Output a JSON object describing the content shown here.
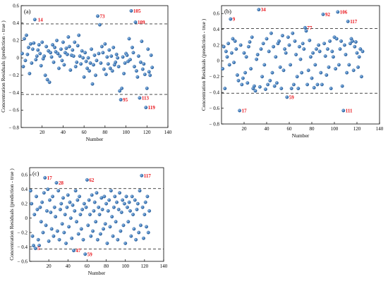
{
  "chart_data": [
    {
      "panel": "(a)",
      "type": "scatter",
      "xlabel": "Number",
      "ylabel": "Concentration Residuals (prediction - true )",
      "xlim": [
        0,
        140
      ],
      "ylim": [
        -0.8,
        0.6
      ],
      "xticks": [
        20,
        40,
        60,
        80,
        100,
        120,
        140
      ],
      "yticks": [
        -0.8,
        -0.6,
        -0.4,
        -0.2,
        0,
        0.2,
        0.4,
        0.6
      ],
      "ytick_labels": [
        "− 0.8",
        "− 0.6",
        "− 0.4",
        "− 0.2",
        "0",
        "0.2",
        "0.4",
        "0.6"
      ],
      "threshold_lines": [
        0.39,
        -0.42
      ],
      "x": [
        1,
        2,
        3,
        4,
        5,
        6,
        7,
        8,
        9,
        10,
        11,
        12,
        13,
        14,
        15,
        16,
        17,
        18,
        19,
        20,
        21,
        22,
        23,
        24,
        25,
        26,
        27,
        28,
        29,
        30,
        31,
        32,
        33,
        34,
        35,
        36,
        37,
        38,
        39,
        40,
        41,
        42,
        43,
        44,
        45,
        46,
        47,
        48,
        49,
        50,
        51,
        52,
        53,
        54,
        55,
        56,
        57,
        58,
        59,
        60,
        61,
        62,
        63,
        64,
        65,
        66,
        67,
        68,
        69,
        70,
        71,
        72,
        73,
        74,
        75,
        76,
        77,
        78,
        79,
        80,
        81,
        82,
        83,
        84,
        85,
        86,
        87,
        88,
        89,
        90,
        91,
        92,
        93,
        94,
        95,
        96,
        97,
        98,
        99,
        100,
        101,
        102,
        103,
        104,
        105,
        106,
        107,
        108,
        109,
        110,
        111,
        112,
        113,
        114,
        115,
        116,
        117,
        118,
        119,
        120,
        121,
        122,
        123,
        124,
        125
      ],
      "y": [
        0.05,
        -0.1,
        0.22,
        -0.03,
        0.26,
        0.04,
        0.12,
        -0.18,
        0.16,
        -0.06,
        0.1,
        0.17,
        0.44,
        -0.02,
        0.02,
        0.09,
        0.15,
        0.05,
        -0.09,
        0.18,
        -0.01,
        0.02,
        -0.2,
        0.13,
        -0.25,
        0.08,
        -0.28,
        0.06,
        0.01,
        0.15,
        -0.05,
        0.12,
        0.07,
        0.2,
        0.05,
        -0.12,
        0.02,
        0.1,
        -0.03,
        0.18,
        -0.08,
        0.06,
        0.11,
        0.04,
        0.24,
        0.13,
        -0.14,
        0.03,
        0.09,
        0.02,
        0.18,
        -0.1,
        -0.05,
        0.14,
        0.26,
        0.02,
        -0.07,
        0.08,
        0.0,
        -0.22,
        0.06,
        -0.04,
        -0.12,
        0.0,
        -0.15,
        -0.06,
        0.1,
        -0.3,
        -0.08,
        0.03,
        -0.2,
        -0.03,
        0.48,
        0.05,
        0.38,
        -0.06,
        0.13,
        0.06,
        -0.13,
        0.16,
        -0.19,
        0.01,
        -0.07,
        0.09,
        -0.12,
        0.02,
        -0.15,
        0.12,
        -0.08,
        -0.05,
        0.04,
        0.0,
        -0.1,
        -0.38,
        -0.48,
        -0.35,
        0.01,
        -0.18,
        -0.06,
        0.05,
        0.03,
        -0.04,
        0.22,
        -0.02,
        0.54,
        0.12,
        0.06,
        -0.1,
        0.41,
        -0.15,
        -0.22,
        0.02,
        -0.46,
        -0.05,
        0.19,
        -0.13,
        -0.07,
        -0.19,
        -0.57,
        -0.35,
        0.1,
        -0.16,
        -0.2,
        0.03,
        -0.11
      ],
      "annotations": [
        {
          "label": "14",
          "x": 14,
          "y": 0.44
        },
        {
          "label": "73",
          "x": 73,
          "y": 0.48
        },
        {
          "label": "105",
          "x": 105,
          "y": 0.54
        },
        {
          "label": "109",
          "x": 109,
          "y": 0.41
        },
        {
          "label": "95",
          "x": 95,
          "y": -0.48
        },
        {
          "label": "113",
          "x": 113,
          "y": -0.46
        },
        {
          "label": "119",
          "x": 119,
          "y": -0.57
        }
      ]
    },
    {
      "panel": "(b)",
      "type": "scatter",
      "xlabel": "Number",
      "ylabel": "Concentration Residuals (prediction - true )",
      "xlim": [
        0,
        140
      ],
      "ylim": [
        -0.8,
        0.7
      ],
      "xticks": [
        20,
        40,
        60,
        80,
        100,
        120,
        140
      ],
      "yticks": [
        -0.8,
        -0.6,
        -0.4,
        -0.2,
        0,
        0.2,
        0.4,
        0.6
      ],
      "ytick_labels": [
        "− 0.8",
        "− 0.6",
        "− 0.4",
        "− 0.2",
        "0",
        "0.2",
        "0.4",
        "0.6"
      ],
      "threshold_lines": [
        0.41,
        -0.41
      ],
      "x": [
        1,
        2,
        3,
        4,
        5,
        6,
        7,
        8,
        9,
        10,
        11,
        12,
        13,
        14,
        15,
        16,
        17,
        18,
        19,
        20,
        21,
        22,
        23,
        24,
        25,
        26,
        27,
        28,
        29,
        30,
        31,
        32,
        33,
        34,
        35,
        36,
        37,
        38,
        39,
        40,
        41,
        42,
        43,
        44,
        45,
        46,
        47,
        48,
        49,
        50,
        51,
        52,
        53,
        54,
        55,
        56,
        57,
        58,
        59,
        60,
        61,
        62,
        63,
        64,
        65,
        66,
        67,
        68,
        69,
        70,
        71,
        72,
        73,
        74,
        75,
        76,
        77,
        78,
        79,
        80,
        81,
        82,
        83,
        84,
        85,
        86,
        87,
        88,
        89,
        90,
        91,
        92,
        93,
        94,
        95,
        96,
        97,
        98,
        99,
        100,
        101,
        102,
        103,
        104,
        105,
        106,
        107,
        108,
        109,
        110,
        111,
        112,
        113,
        114,
        115,
        116,
        117,
        118,
        119,
        120,
        121,
        122,
        123,
        124,
        125
      ],
      "y": [
        -0.1,
        0.18,
        -0.35,
        0.12,
        0.05,
        0.22,
        -0.05,
        0.53,
        0.1,
        0.28,
        -0.02,
        0.25,
        0.15,
        -0.18,
        -0.25,
        -0.63,
        0.2,
        -0.3,
        -0.22,
        0.1,
        -0.15,
        0.05,
        -0.28,
        0.18,
        0.24,
        -0.1,
        0.3,
        -0.35,
        -0.32,
        -0.38,
        0.02,
        0.08,
        0.65,
        -0.33,
        0.15,
        -0.2,
        0.22,
        -0.05,
        -0.36,
        0.28,
        -0.3,
        0.12,
        -0.25,
        0.35,
        -0.15,
        0.18,
        -0.32,
        0.05,
        -0.28,
        0.22,
        0.25,
        -0.08,
        -0.35,
        0.32,
        -0.12,
        0.15,
        0.1,
        -0.46,
        0.3,
        0.2,
        -0.05,
        -0.35,
        0.35,
        -0.3,
        0.25,
        0.08,
        -0.2,
        -0.35,
        0.18,
        0.02,
        -0.15,
        0.22,
        0.15,
        0.42,
        0.38,
        -0.3,
        -0.12,
        0.26,
        0.05,
        -0.22,
        0.1,
        -0.34,
        -0.05,
        0.15,
        -0.3,
        0.2,
        0.12,
        -0.15,
        -0.3,
        0.59,
        0.22,
        0.06,
        -0.18,
        0.15,
        -0.08,
        0.25,
        -0.35,
        0.12,
        0.05,
        0.3,
        -0.1,
        0.28,
        0.62,
        -0.05,
        0.15,
        0.25,
        -0.32,
        -0.63,
        0.2,
        0.08,
        -0.15,
        0.5,
        -0.05,
        0.22,
        0.28,
        0.25,
        -0.12,
        0.18,
        0.24,
        0.1,
        -0.08,
        0.05,
        0.15,
        -0.2,
        0.12
      ],
      "annotations": [
        {
          "label": "9",
          "x": 8,
          "y": 0.53
        },
        {
          "label": "34",
          "x": 33,
          "y": 0.65
        },
        {
          "label": "77",
          "x": 74,
          "y": 0.42
        },
        {
          "label": "92",
          "x": 90,
          "y": 0.59
        },
        {
          "label": "106",
          "x": 103,
          "y": 0.62
        },
        {
          "label": "117",
          "x": 112,
          "y": 0.5
        },
        {
          "label": "17",
          "x": 16,
          "y": -0.63
        },
        {
          "label": "59",
          "x": 58,
          "y": -0.46
        },
        {
          "label": "111",
          "x": 108,
          "y": -0.63
        }
      ]
    },
    {
      "panel": "(c)",
      "type": "scatter",
      "xlabel": "Number",
      "ylabel": "Concentration Residuals (prediction - true )",
      "xlim": [
        0,
        140
      ],
      "ylim": [
        -0.6,
        0.7
      ],
      "xticks": [
        20,
        40,
        60,
        80,
        100,
        120,
        140
      ],
      "yticks": [
        -0.6,
        -0.4,
        -0.2,
        0,
        0.2,
        0.4,
        0.6
      ],
      "ytick_labels": [
        "− 0.6",
        "− 0.4",
        "− 0.2",
        "0",
        "0.2",
        "0.4",
        "0.6"
      ],
      "threshold_lines": [
        0.41,
        -0.43
      ],
      "x": [
        1,
        2,
        3,
        4,
        5,
        6,
        7,
        8,
        9,
        10,
        11,
        12,
        13,
        14,
        15,
        16,
        17,
        18,
        19,
        20,
        21,
        22,
        23,
        24,
        25,
        26,
        27,
        28,
        29,
        30,
        31,
        32,
        33,
        34,
        35,
        36,
        37,
        38,
        39,
        40,
        41,
        42,
        43,
        44,
        45,
        46,
        47,
        48,
        49,
        50,
        51,
        52,
        53,
        54,
        55,
        56,
        57,
        58,
        59,
        60,
        61,
        62,
        63,
        64,
        65,
        66,
        67,
        68,
        69,
        70,
        71,
        72,
        73,
        74,
        75,
        76,
        77,
        78,
        79,
        80,
        81,
        82,
        83,
        84,
        85,
        86,
        87,
        88,
        89,
        90,
        91,
        92,
        93,
        94,
        95,
        96,
        97,
        98,
        99,
        100,
        101,
        102,
        103,
        104,
        105,
        106,
        107,
        108,
        109,
        110,
        111,
        112,
        113,
        114,
        115,
        116,
        117,
        118,
        119,
        120,
        121,
        122,
        123,
        124,
        125
      ],
      "y": [
        0.38,
        0.2,
        -0.25,
        -0.38,
        0.05,
        -0.42,
        0.3,
        0.12,
        -0.3,
        -0.38,
        0.15,
        -0.05,
        0.22,
        -0.2,
        0.35,
        0.56,
        -0.1,
        0.1,
        0.4,
        -0.32,
        0.25,
        0.08,
        -0.15,
        0.3,
        -0.25,
        0.15,
        0.02,
        0.49,
        -0.18,
        0.38,
        -0.3,
        0.12,
        0.2,
        -0.08,
        0.28,
        -0.2,
        0.05,
        -0.35,
        0.15,
        0.32,
        -0.12,
        0.22,
        0.0,
        -0.28,
        0.18,
        -0.45,
        0.1,
        0.38,
        -0.05,
        0.25,
        -0.22,
        0.3,
        0.05,
        -0.15,
        0.12,
        -0.3,
        0.2,
        -0.5,
        0.15,
        0.53,
        -0.1,
        0.25,
        0.05,
        -0.25,
        0.32,
        -0.18,
        0.1,
        0.22,
        -0.05,
        0.35,
        -0.3,
        0.15,
        0.05,
        -0.22,
        0.28,
        0.12,
        -0.15,
        0.3,
        -0.08,
        0.2,
        -0.35,
        0.1,
        0.25,
        -0.12,
        0.38,
        0.02,
        -0.25,
        0.15,
        0.3,
        -0.05,
        0.22,
        -0.3,
        0.12,
        0.35,
        -0.18,
        0.08,
        0.25,
        -0.1,
        0.2,
        -0.35,
        0.3,
        0.15,
        -0.05,
        0.22,
        0.1,
        -0.25,
        0.3,
        0.05,
        -0.15,
        0.25,
        -0.3,
        0.12,
        0.2,
        -0.2,
        0.38,
        -0.1,
        0.59,
        0.15,
        -0.28,
        0.05,
        0.22,
        -0.12,
        0.3,
        -0.2,
        0.1
      ],
      "annotations": [
        {
          "label": "17",
          "x": 16,
          "y": 0.56
        },
        {
          "label": "28",
          "x": 28,
          "y": 0.49
        },
        {
          "label": "62",
          "x": 60,
          "y": 0.53
        },
        {
          "label": "117",
          "x": 117,
          "y": 0.59
        },
        {
          "label": "5",
          "x": 6,
          "y": -0.42
        },
        {
          "label": "47",
          "x": 46,
          "y": -0.45
        },
        {
          "label": "59",
          "x": 58,
          "y": -0.5
        }
      ]
    }
  ]
}
